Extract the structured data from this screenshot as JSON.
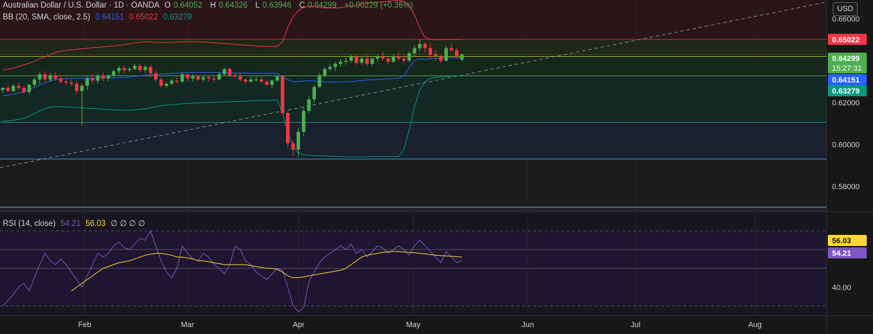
{
  "header": {
    "symbol_title": "Australian Dollar / U.S. Dollar · 1D · OANDA",
    "ohlc": [
      {
        "label": "O",
        "value": "0.64052"
      },
      {
        "label": "H",
        "value": "0.64326"
      },
      {
        "label": "L",
        "value": "0.63946"
      },
      {
        "label": "C",
        "value": "0.64299"
      }
    ],
    "change": "+0.00229 (+0.36%)",
    "up_color": "#4caf50",
    "text_color": "#d1d4dc"
  },
  "bb_legend": {
    "title": "BB (20, SMA, close, 2.5)",
    "basis": "0.64151",
    "upper": "0.65022",
    "lower": "0.63279",
    "basis_color": "#2962ff",
    "upper_color": "#f23645",
    "lower_color": "#089981"
  },
  "rsi_legend": {
    "title": "RSI (14, close)",
    "rsi_value": "54.21",
    "ma_value": "56.03",
    "extras": "∅ ∅ ∅ ∅",
    "rsi_color": "#7e57c2",
    "ma_color": "#fdd835"
  },
  "price_axis": {
    "currency_button": "USD",
    "ticks": [
      "0.66000",
      "0.62000",
      "0.60000",
      "0.58000"
    ],
    "tags": {
      "upper": "0.65022",
      "close": "0.64299",
      "countdown": "15:27:31",
      "basis": "0.64151",
      "lower": "0.63279"
    }
  },
  "rsi_axis": {
    "ticks": [
      "40.00"
    ],
    "tags": {
      "ma": "56.03",
      "rsi": "54.21"
    }
  },
  "time_axis": {
    "labels": [
      "Feb",
      "Mar",
      "Apr",
      "May",
      "Jun",
      "Jul",
      "Aug"
    ]
  },
  "chart_data": {
    "type": "candlestick",
    "start_date": "2025-01-20",
    "y_range": [
      0.568,
      0.669
    ],
    "rsi_range": [
      25,
      80
    ],
    "candles": [
      [
        0.626,
        0.6275,
        0.6245,
        0.627
      ],
      [
        0.627,
        0.6285,
        0.625,
        0.6255
      ],
      [
        0.6255,
        0.629,
        0.625,
        0.628
      ],
      [
        0.628,
        0.6295,
        0.626,
        0.627
      ],
      [
        0.627,
        0.628,
        0.624,
        0.625
      ],
      [
        0.625,
        0.629,
        0.624,
        0.6285
      ],
      [
        0.6285,
        0.632,
        0.6275,
        0.631
      ],
      [
        0.631,
        0.6345,
        0.629,
        0.6335
      ],
      [
        0.6335,
        0.635,
        0.63,
        0.631
      ],
      [
        0.631,
        0.634,
        0.63,
        0.633
      ],
      [
        0.633,
        0.6345,
        0.6305,
        0.6315
      ],
      [
        0.6315,
        0.633,
        0.629,
        0.63
      ],
      [
        0.63,
        0.6315,
        0.6285,
        0.6295
      ],
      [
        0.6295,
        0.631,
        0.628,
        0.629
      ],
      [
        0.629,
        0.6305,
        0.624,
        0.6255
      ],
      [
        0.6255,
        0.629,
        0.609,
        0.628
      ],
      [
        0.628,
        0.6325,
        0.626,
        0.6315
      ],
      [
        0.6315,
        0.6335,
        0.629,
        0.6305
      ],
      [
        0.6305,
        0.634,
        0.629,
        0.633
      ],
      [
        0.633,
        0.6345,
        0.63,
        0.6315
      ],
      [
        0.6315,
        0.6335,
        0.63,
        0.633
      ],
      [
        0.633,
        0.636,
        0.632,
        0.635
      ],
      [
        0.635,
        0.6375,
        0.633,
        0.6365
      ],
      [
        0.6365,
        0.6375,
        0.634,
        0.6355
      ],
      [
        0.6355,
        0.637,
        0.6345,
        0.636
      ],
      [
        0.636,
        0.6385,
        0.6355,
        0.6375
      ],
      [
        0.6375,
        0.6385,
        0.6345,
        0.6355
      ],
      [
        0.6355,
        0.638,
        0.634,
        0.637
      ],
      [
        0.637,
        0.638,
        0.632,
        0.634
      ],
      [
        0.634,
        0.6355,
        0.63,
        0.631
      ],
      [
        0.631,
        0.632,
        0.627,
        0.628
      ],
      [
        0.628,
        0.63,
        0.627,
        0.629
      ],
      [
        0.629,
        0.6315,
        0.6285,
        0.6305
      ],
      [
        0.6305,
        0.6325,
        0.629,
        0.63
      ],
      [
        0.63,
        0.6345,
        0.6295,
        0.6335
      ],
      [
        0.6335,
        0.634,
        0.63,
        0.6315
      ],
      [
        0.6315,
        0.6335,
        0.63,
        0.6325
      ],
      [
        0.6325,
        0.633,
        0.63,
        0.631
      ],
      [
        0.631,
        0.633,
        0.63,
        0.632
      ],
      [
        0.632,
        0.633,
        0.63,
        0.6315
      ],
      [
        0.6315,
        0.6325,
        0.6295,
        0.631
      ],
      [
        0.631,
        0.6345,
        0.6305,
        0.6335
      ],
      [
        0.6335,
        0.6365,
        0.633,
        0.636
      ],
      [
        0.636,
        0.6365,
        0.632,
        0.633
      ],
      [
        0.633,
        0.634,
        0.6315,
        0.6325
      ],
      [
        0.6325,
        0.634,
        0.63,
        0.631
      ],
      [
        0.631,
        0.6315,
        0.629,
        0.63
      ],
      [
        0.63,
        0.6325,
        0.6295,
        0.631
      ],
      [
        0.631,
        0.633,
        0.63,
        0.631
      ],
      [
        0.631,
        0.6325,
        0.6295,
        0.63
      ],
      [
        0.63,
        0.631,
        0.628,
        0.6285
      ],
      [
        0.6285,
        0.631,
        0.627,
        0.6305
      ],
      [
        0.6305,
        0.633,
        0.63,
        0.6325
      ],
      [
        0.6325,
        0.633,
        0.614,
        0.615
      ],
      [
        0.615,
        0.616,
        0.5985,
        0.6005
      ],
      [
        0.6005,
        0.602,
        0.5945,
        0.5975
      ],
      [
        0.5975,
        0.608,
        0.594,
        0.606
      ],
      [
        0.606,
        0.618,
        0.604,
        0.616
      ],
      [
        0.616,
        0.623,
        0.615,
        0.6215
      ],
      [
        0.6215,
        0.6285,
        0.62,
        0.6275
      ],
      [
        0.6275,
        0.634,
        0.627,
        0.633
      ],
      [
        0.633,
        0.637,
        0.632,
        0.636
      ],
      [
        0.636,
        0.6385,
        0.635,
        0.637
      ],
      [
        0.637,
        0.6395,
        0.635,
        0.6385
      ],
      [
        0.6385,
        0.641,
        0.637,
        0.6395
      ],
      [
        0.6395,
        0.642,
        0.638,
        0.64
      ],
      [
        0.64,
        0.643,
        0.639,
        0.642
      ],
      [
        0.642,
        0.643,
        0.638,
        0.639
      ],
      [
        0.639,
        0.642,
        0.638,
        0.641
      ],
      [
        0.641,
        0.6425,
        0.6375,
        0.6385
      ],
      [
        0.6385,
        0.6415,
        0.6375,
        0.641
      ],
      [
        0.641,
        0.643,
        0.6395,
        0.642
      ],
      [
        0.642,
        0.644,
        0.64,
        0.641
      ],
      [
        0.641,
        0.642,
        0.6385,
        0.6395
      ],
      [
        0.6395,
        0.643,
        0.639,
        0.642
      ],
      [
        0.642,
        0.644,
        0.64,
        0.641
      ],
      [
        0.641,
        0.6425,
        0.639,
        0.64
      ],
      [
        0.64,
        0.6445,
        0.6395,
        0.6435
      ],
      [
        0.6435,
        0.6475,
        0.642,
        0.646
      ],
      [
        0.646,
        0.65,
        0.6445,
        0.648
      ],
      [
        0.648,
        0.649,
        0.644,
        0.646
      ],
      [
        0.646,
        0.648,
        0.641,
        0.643
      ],
      [
        0.643,
        0.645,
        0.64,
        0.642
      ],
      [
        0.642,
        0.643,
        0.639,
        0.64
      ],
      [
        0.64,
        0.647,
        0.6395,
        0.646
      ],
      [
        0.646,
        0.648,
        0.644,
        0.645
      ],
      [
        0.645,
        0.646,
        0.641,
        0.642
      ],
      [
        0.6405,
        0.6433,
        0.6395,
        0.643
      ]
    ],
    "bb_upper": [
      0.6355,
      0.636,
      0.6365,
      0.6372,
      0.638,
      0.6388,
      0.6398,
      0.6408,
      0.6418,
      0.6428,
      0.644,
      0.6445,
      0.645,
      0.6452,
      0.6454,
      0.6457,
      0.646,
      0.6462,
      0.6464,
      0.6466,
      0.6468,
      0.647,
      0.6473,
      0.6476,
      0.648,
      0.6485,
      0.6488,
      0.649,
      0.649,
      0.6488,
      0.6487,
      0.6487,
      0.6488,
      0.6489,
      0.649,
      0.6491,
      0.6491,
      0.649,
      0.6489,
      0.6488,
      0.6486,
      0.6484,
      0.6482,
      0.648,
      0.6478,
      0.6476,
      0.6474,
      0.6472,
      0.647,
      0.6469,
      0.6468,
      0.6468,
      0.6467,
      0.649,
      0.656,
      0.661,
      0.664,
      0.6655,
      0.666,
      0.666,
      0.6655,
      0.6652,
      0.6652,
      0.6652,
      0.6654,
      0.6657,
      0.6661,
      0.6665,
      0.667,
      0.6674,
      0.6677,
      0.6679,
      0.6681,
      0.6683,
      0.6687,
      0.6689,
      0.6683,
      0.6665,
      0.662,
      0.6555,
      0.6512,
      0.6502,
      0.65,
      0.6501,
      0.6502,
      0.6502,
      0.6502,
      0.6502
    ],
    "bb_lower": [
      0.611,
      0.6112,
      0.6115,
      0.612,
      0.6125,
      0.6135,
      0.6148,
      0.616,
      0.617,
      0.6178,
      0.618,
      0.618,
      0.6179,
      0.6178,
      0.6176,
      0.6175,
      0.6173,
      0.6172,
      0.617,
      0.6168,
      0.6166,
      0.6165,
      0.6164,
      0.6163,
      0.6163,
      0.6165,
      0.6167,
      0.617,
      0.6175,
      0.618,
      0.6185,
      0.6188,
      0.619,
      0.6192,
      0.6194,
      0.6196,
      0.6197,
      0.6198,
      0.6199,
      0.62,
      0.6201,
      0.6202,
      0.6203,
      0.6204,
      0.6205,
      0.6206,
      0.6207,
      0.6208,
      0.6209,
      0.621,
      0.621,
      0.6211,
      0.6212,
      0.615,
      0.606,
      0.599,
      0.596,
      0.595,
      0.5948,
      0.5947,
      0.5946,
      0.5945,
      0.5944,
      0.5943,
      0.5942,
      0.5941,
      0.594,
      0.594,
      0.594,
      0.5941,
      0.5942,
      0.5942,
      0.5942,
      0.5942,
      0.5942,
      0.5942,
      0.5975,
      0.607,
      0.618,
      0.626,
      0.63,
      0.6315,
      0.632,
      0.6322,
      0.6324,
      0.6326,
      0.6327,
      0.6328
    ],
    "rsi": [
      30,
      33,
      36,
      40,
      42,
      38,
      45,
      52,
      58,
      54,
      52,
      55,
      52,
      48,
      44,
      40,
      46,
      52,
      58,
      56,
      58,
      62,
      64,
      61,
      60,
      63,
      66,
      65,
      70,
      62,
      54,
      48,
      45,
      50,
      62,
      58,
      55,
      54,
      58,
      56,
      52,
      50,
      47,
      52,
      62,
      60,
      54,
      52,
      48,
      46,
      44,
      47,
      50,
      49,
      40,
      30,
      27,
      29,
      43,
      48,
      53,
      56,
      58,
      60,
      62,
      60,
      63,
      58,
      60,
      56,
      59,
      62,
      61,
      58,
      60,
      62,
      60,
      57,
      62,
      65,
      62,
      59,
      56,
      53,
      59,
      56,
      53,
      54.21
    ],
    "rsi_ma": [
      null,
      null,
      null,
      null,
      null,
      null,
      null,
      null,
      null,
      null,
      null,
      null,
      null,
      38,
      40,
      42,
      44,
      46,
      48,
      50,
      51,
      52,
      53,
      53.5,
      54,
      55,
      56,
      57,
      57.5,
      58,
      58,
      57.5,
      57,
      56,
      56,
      55.5,
      55,
      54,
      54,
      53.5,
      53,
      52.5,
      52,
      52,
      52,
      52,
      52,
      51.5,
      51,
      50.5,
      50,
      50,
      49.5,
      48,
      46,
      45,
      45,
      45.5,
      46,
      46.5,
      47,
      47.5,
      48,
      48.5,
      49,
      50,
      52,
      54,
      56,
      57,
      57.5,
      58,
      58.5,
      58.8,
      59,
      58.9,
      58.7,
      58.5,
      58.3,
      58,
      57.7,
      57.3,
      57,
      56.8,
      56.6,
      56.4,
      56.2,
      56.03
    ],
    "annotations": {
      "horizontal_levels": [
        0.6502,
        0.642,
        0.6328,
        0.6105,
        0.593,
        0.57
      ],
      "rsi_levels": [
        70,
        60,
        50,
        30
      ]
    }
  }
}
